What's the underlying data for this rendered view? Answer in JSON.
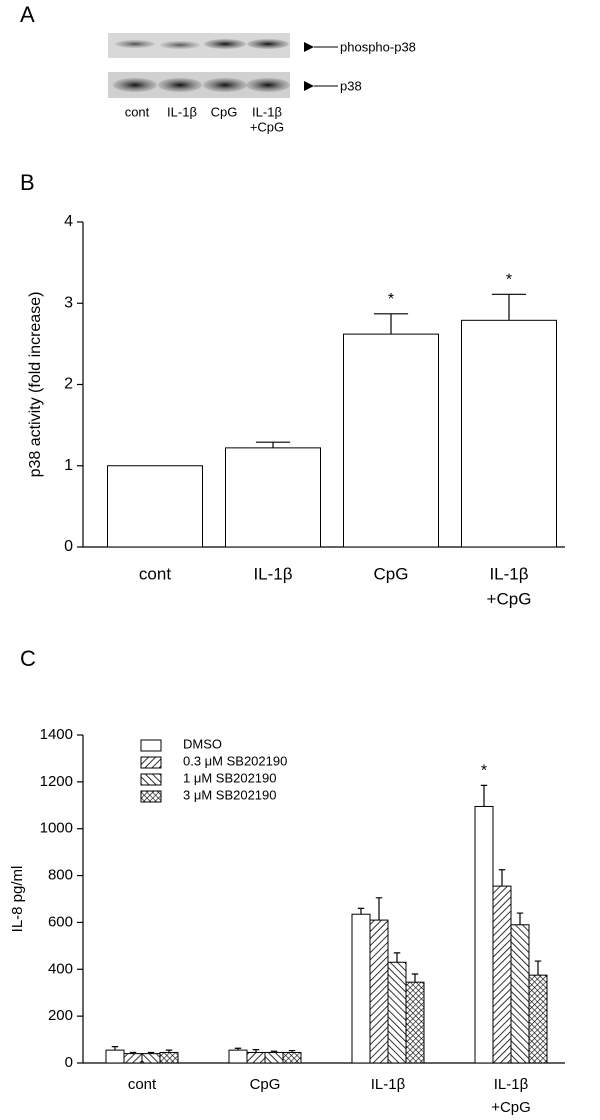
{
  "blot": {
    "panel_label": "A",
    "rows": [
      "phospho-p38",
      "p38"
    ],
    "lanes": [
      [
        "cont"
      ],
      [
        "IL-1β"
      ],
      [
        "CpG"
      ],
      [
        "IL-1β",
        "+CpG"
      ]
    ]
  },
  "chart_data": [
    {
      "type": "bar",
      "panel_label": "B",
      "ylabel": "p38 activity (fold increase)",
      "categories": [
        [
          "cont"
        ],
        [
          "IL-1β"
        ],
        [
          "CpG"
        ],
        [
          "IL-1β",
          "+CpG"
        ]
      ],
      "values": [
        1.0,
        1.22,
        2.62,
        2.79
      ],
      "errors": [
        0,
        0.07,
        0.25,
        0.32
      ],
      "significance": [
        null,
        null,
        "*",
        "*"
      ],
      "color": "#ffffff",
      "ylim": [
        0,
        4
      ],
      "yticks": [
        0,
        1,
        2,
        3,
        4
      ]
    },
    {
      "type": "grouped-bar",
      "panel_label": "C",
      "ylabel": "IL-8 pg/ml",
      "categories": [
        [
          "cont"
        ],
        [
          "CpG"
        ],
        [
          "IL-1β"
        ],
        [
          "IL-1β",
          "+CpG"
        ]
      ],
      "series": [
        {
          "name": "DMSO",
          "color": "#ffffff",
          "hatch": "none",
          "values": [
            55,
            55,
            635,
            1095
          ],
          "errors": [
            15,
            8,
            25,
            90
          ],
          "significance": [
            null,
            null,
            null,
            "*"
          ]
        },
        {
          "name": "0.3 μM SB202190",
          "color": "#ffffff",
          "hatch": "diagonal",
          "values": [
            40,
            45,
            610,
            755
          ],
          "errors": [
            5,
            12,
            95,
            70
          ]
        },
        {
          "name": "1 μM SB202190",
          "color": "#ffffff",
          "hatch": "back-diagonal",
          "values": [
            40,
            45,
            430,
            590
          ],
          "errors": [
            5,
            5,
            40,
            50
          ]
        },
        {
          "name": "3 μM SB202190",
          "color": "#ffffff",
          "hatch": "cross",
          "values": [
            45,
            45,
            345,
            375
          ],
          "errors": [
            10,
            8,
            35,
            60
          ]
        }
      ],
      "legend": "upper left",
      "ylim": [
        0,
        1400
      ],
      "yticks": [
        0,
        200,
        400,
        600,
        800,
        1000,
        1200,
        1400
      ]
    }
  ]
}
